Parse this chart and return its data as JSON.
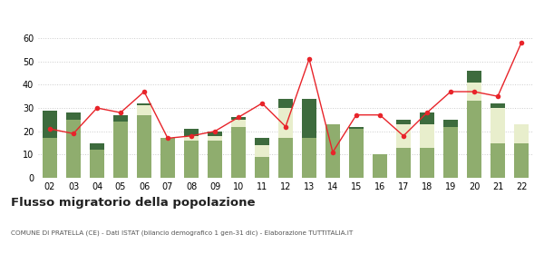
{
  "years": [
    "02",
    "03",
    "04",
    "05",
    "06",
    "07",
    "08",
    "09",
    "10",
    "11",
    "12",
    "13",
    "14",
    "15",
    "16",
    "17",
    "18",
    "19",
    "20",
    "21",
    "22"
  ],
  "iscritti_altri_comuni": [
    17,
    25,
    12,
    24,
    27,
    17,
    16,
    16,
    22,
    9,
    17,
    17,
    23,
    21,
    10,
    13,
    13,
    22,
    33,
    15,
    15
  ],
  "iscritti_estero": [
    0,
    0,
    0,
    0,
    4,
    0,
    2,
    2,
    3,
    5,
    13,
    0,
    0,
    0,
    0,
    10,
    10,
    0,
    8,
    15,
    8
  ],
  "iscritti_altri": [
    12,
    3,
    3,
    3,
    1,
    0,
    3,
    2,
    1,
    3,
    4,
    17,
    0,
    1,
    0,
    2,
    5,
    3,
    5,
    2,
    0
  ],
  "cancellati": [
    21,
    19,
    30,
    28,
    37,
    17,
    18,
    20,
    26,
    32,
    22,
    51,
    11,
    27,
    27,
    18,
    28,
    37,
    37,
    35,
    58
  ],
  "color_altri_comuni": "#8fad6e",
  "color_estero": "#e8eecc",
  "color_altri": "#3d6b3d",
  "color_cancellati": "#e8242a",
  "title": "Flusso migratorio della popolazione",
  "subtitle": "COMUNE DI PRATELLA (CE) - Dati ISTAT (bilancio demografico 1 gen-31 dic) - Elaborazione TUTTITALIA.IT",
  "ylim": [
    0,
    60
  ],
  "yticks": [
    0,
    10,
    20,
    30,
    40,
    50,
    60
  ],
  "bg_color": "#ffffff",
  "grid_color": "#cccccc"
}
